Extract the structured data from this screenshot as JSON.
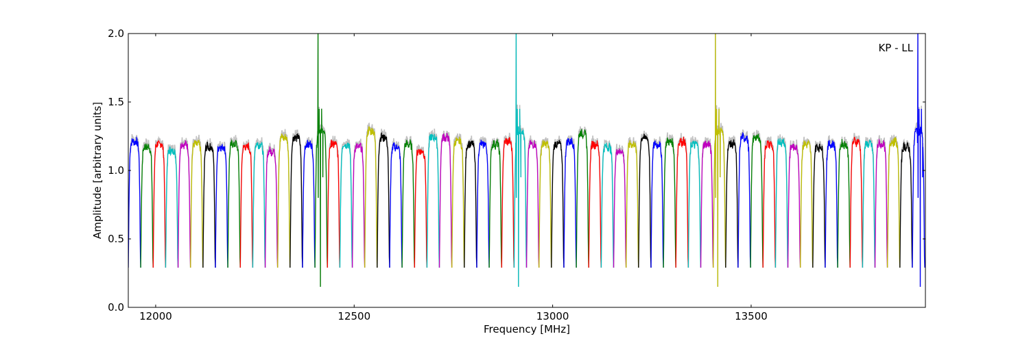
{
  "chart_data": {
    "type": "line",
    "title": "",
    "annotation": "KP - LL",
    "xlabel": "Frequency [MHz]",
    "ylabel": "Amplitude [arbitrary units]",
    "xlim": [
      11931,
      13939
    ],
    "ylim": [
      0.0,
      2.0
    ],
    "xticks": [
      12000,
      12500,
      13000,
      13500
    ],
    "xtick_labels": [
      "12000",
      "12500",
      "13000",
      "13500"
    ],
    "yticks": [
      0.0,
      0.5,
      1.0,
      1.5,
      2.0
    ],
    "ytick_labels": [
      "0.0",
      "0.5",
      "1.0",
      "1.5",
      "2.0"
    ],
    "grid": false,
    "channel_start_mhz": 11931,
    "channel_width_mhz": 31.35,
    "channel_edge_level": 0.29,
    "color_cycle": [
      "#0000ff",
      "#008000",
      "#ff0000",
      "#00bfbf",
      "#bf00bf",
      "#bfbf00",
      "#000000"
    ],
    "background_series_color": "#c0c0c0",
    "channel_levels": [
      1.22,
      1.18,
      1.2,
      1.15,
      1.2,
      1.2,
      1.18,
      1.18,
      1.2,
      1.18,
      1.2,
      1.15,
      1.25,
      1.25,
      1.2,
      1.3,
      1.2,
      1.2,
      1.18,
      1.3,
      1.25,
      1.18,
      1.2,
      1.15,
      1.25,
      1.25,
      1.22,
      1.2,
      1.2,
      1.2,
      1.22,
      1.3,
      1.2,
      1.2,
      1.2,
      1.22,
      1.28,
      1.2,
      1.18,
      1.15,
      1.2,
      1.25,
      1.2,
      1.22,
      1.22,
      1.2,
      1.2,
      1.3,
      1.2,
      1.25,
      1.25,
      1.2,
      1.22,
      1.18,
      1.2,
      1.18,
      1.2,
      1.2,
      1.22,
      1.2,
      1.2,
      1.22,
      1.18,
      1.3
    ],
    "spikes": [
      {
        "channel": 15,
        "peak_freq": 12409,
        "peak": 2.0,
        "dip": 0.15
      },
      {
        "channel": 31,
        "peak_freq": 12908,
        "peak": 2.0,
        "dip": 0.15
      },
      {
        "channel": 47,
        "peak_freq": 13410,
        "peak": 2.0,
        "dip": 0.15
      },
      {
        "channel": 63,
        "peak_freq": 13920,
        "peak": 2.0,
        "dip": 0.15
      }
    ]
  }
}
